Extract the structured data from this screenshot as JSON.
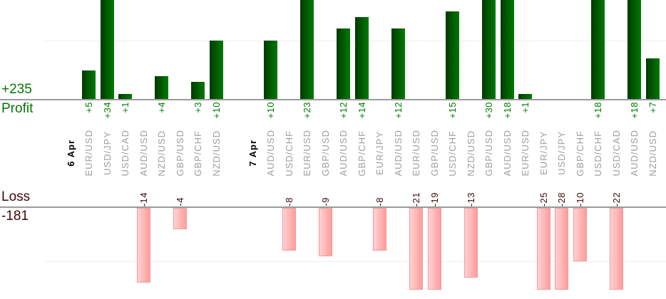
{
  "left_panel": {
    "profit_total_label": "+235",
    "profit_axis_label": "Profit",
    "loss_axis_label": "Loss",
    "loss_total_label": "-181"
  },
  "chart_data": {
    "type": "bar",
    "layout": "dual pane: profit bars grow up from upper baseline, loss bars grow down from lower baseline, shared rotated category axis between panes",
    "profit_axis": {
      "label": "Profit",
      "total": 235,
      "total_label": "+235",
      "gridline_values": [
        10
      ],
      "visible_range": [
        0,
        17
      ],
      "note": "bars taller than visible range are clipped at image top"
    },
    "loss_axis": {
      "label": "Loss",
      "total": -181,
      "total_label": "-181",
      "gridline_values": [
        -10
      ],
      "visible_range": [
        0,
        -15.5
      ],
      "note": "bars deeper than visible range are clipped at pane bottom"
    },
    "groups": [
      {
        "date": "6 Apr",
        "trades": [
          {
            "pair": "EUR/USD",
            "value": 5
          },
          {
            "pair": "USD/JPY",
            "value": 34
          },
          {
            "pair": "USD/CAD",
            "value": 1
          },
          {
            "pair": "AUD/USD",
            "value": -14
          },
          {
            "pair": "NZD/USD",
            "value": 4
          },
          {
            "pair": "GBP/USD",
            "value": -4
          },
          {
            "pair": "GBP/CHF",
            "value": 3
          },
          {
            "pair": "NZD/USD",
            "value": 10
          }
        ]
      },
      {
        "date": "7 Apr",
        "trades": [
          {
            "pair": "AUD/USD",
            "value": 10
          },
          {
            "pair": "USD/CHF",
            "value": -8
          },
          {
            "pair": "EUR/USD",
            "value": 23
          },
          {
            "pair": "GBP/USD",
            "value": -9
          },
          {
            "pair": "AUD/USD",
            "value": 12
          },
          {
            "pair": "GBP/CHF",
            "value": 14
          },
          {
            "pair": "EUR/JPY",
            "value": -8
          },
          {
            "pair": "AUD/USD",
            "value": 12
          },
          {
            "pair": "EUR/USD",
            "value": -21
          },
          {
            "pair": "GBP/USD",
            "value": -19
          },
          {
            "pair": "USD/CHF",
            "value": 15
          },
          {
            "pair": "NZD/USD",
            "value": -13
          },
          {
            "pair": "GBP/USD",
            "value": 30
          },
          {
            "pair": "AUD/USD",
            "value": 18
          },
          {
            "pair": "EUR/USD",
            "value": 1
          },
          {
            "pair": "EUR/JPY",
            "value": -25
          },
          {
            "pair": "USD/JPY",
            "value": -28
          },
          {
            "pair": "GBP/CHF",
            "value": -10
          },
          {
            "pair": "USD/CHF",
            "value": 18
          },
          {
            "pair": "USD/CAD",
            "value": -22
          },
          {
            "pair": "AUD/USD",
            "value": 18
          },
          {
            "pair": "NZD/USD",
            "value": 7
          }
        ]
      }
    ],
    "colors": {
      "profit_text": "#067506",
      "profit_value_text": "#007a00",
      "profit_bar_dark": "#013a01",
      "profit_bar_light": "#017a01",
      "loss_text": "#400808",
      "loss_bar_light": "#ffd2d2",
      "loss_bar_dark": "#ff9c9c",
      "loss_bar_border": "#f29b9b",
      "pair_label_gray": "#9e9e9e",
      "date_label_black": "#000000",
      "axis_line": "#9a9a9a",
      "gridline": "#ededed"
    }
  }
}
